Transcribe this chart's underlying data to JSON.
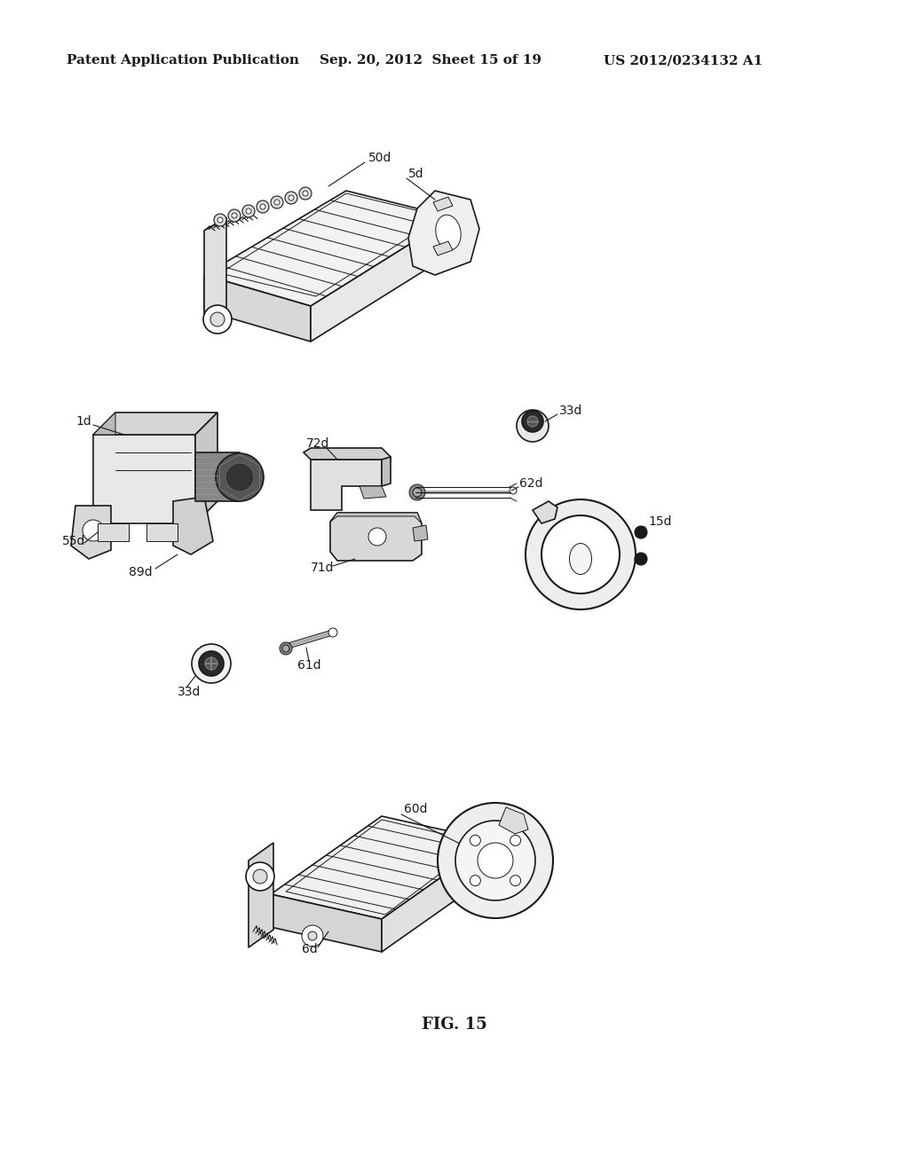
{
  "background_color": "#ffffff",
  "header_left": "Patent Application Publication",
  "header_center": "Sep. 20, 2012  Sheet 15 of 19",
  "header_right": "US 2012/0234132 A1",
  "footer_label": "FIG. 15",
  "header_fontsize": 11,
  "footer_fontsize": 13,
  "line_color": "#1a1a1a",
  "line_width": 1.2
}
